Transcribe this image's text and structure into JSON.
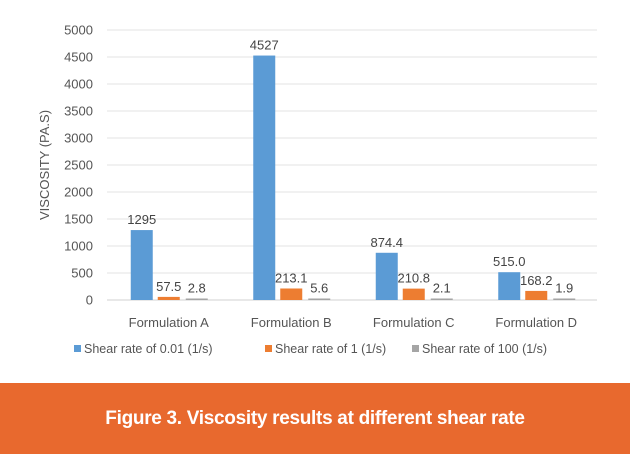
{
  "chart_data": {
    "type": "bar",
    "title": "",
    "xlabel": "",
    "ylabel": "VISCOSITY (PA.S)",
    "ylim": [
      0,
      5000
    ],
    "yticks": [
      0,
      500,
      1000,
      1500,
      2000,
      2500,
      3000,
      3500,
      4000,
      4500,
      5000
    ],
    "grid": true,
    "legend_position": "bottom",
    "categories": [
      "Formulation A",
      "Formulation B",
      "Formulation C",
      "Formulation D"
    ],
    "series": [
      {
        "name": "Shear rate of 0.01 (1/s)",
        "color": "#5B9BD5",
        "values": [
          1295,
          4527,
          874.4,
          515.0
        ],
        "labels": [
          "1295",
          "4527",
          "874.4",
          "515.0"
        ]
      },
      {
        "name": "Shear rate of 1 (1/s)",
        "color": "#ED7D31",
        "values": [
          57.5,
          213.1,
          210.8,
          168.2
        ],
        "labels": [
          "57.5",
          "213.1",
          "210.8",
          "168.2"
        ]
      },
      {
        "name": "Shear rate of 100 (1/s)",
        "color": "#A5A5A5",
        "values": [
          2.8,
          5.6,
          2.1,
          1.9
        ],
        "labels": [
          "2.8",
          "5.6",
          "2.1",
          "1.9"
        ]
      }
    ]
  },
  "caption": "Figure 3. Viscosity results at different shear rate",
  "colors": {
    "banner": "#E8692E"
  }
}
